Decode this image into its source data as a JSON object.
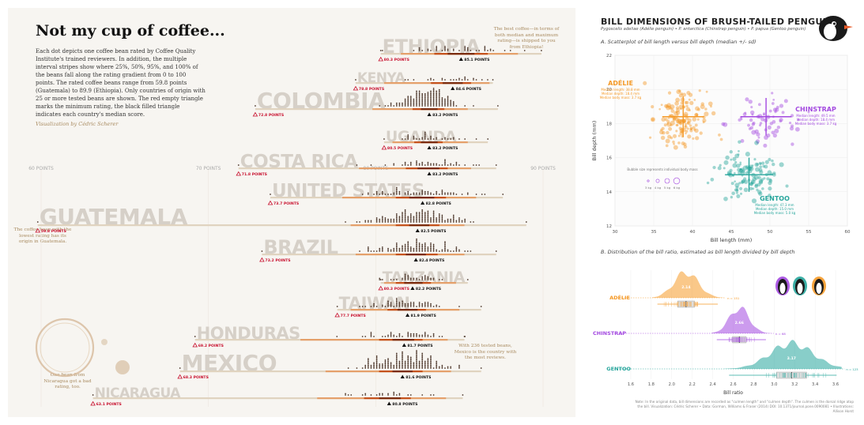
{
  "left": {
    "title": "Not my cup of coffee...",
    "intro": "Each dot depicts one coffee bean rated by Coffee Quality Institute's trained reviewers. In addition, the multiple interval stripes show where 25%, 50%, 95%, and 100% of the beans fall along the rating gradient from 0 to 100 points. The rated coffee beans range from 59.8 points (Guatemala) to 89.9 (Ethiopia). Only countries of origin with 25 or more tested beans are shown. The red empty triangle marks the minimum rating, the black filled triangle indicates each country's median score.",
    "credit": "Visualization by Cédric Scherer",
    "notes": {
      "ethiopia": "The best coffee—in terms of both median and maximum rating—is shipped to you from Ethiopia!",
      "guatemala": "The coffee bean with the lowest rating has its origin in Guatemala.",
      "mexico": "With 236 tested beans, Mexico is the country with the most reviews.",
      "nicaragua": "One bean from Nicaragua got a bad rating, too."
    },
    "colors": {
      "bg": "#f7f5f1",
      "q100": "#e0d3bf",
      "q95": "#e5a06a",
      "q50": "#c5521c",
      "q25": "#7a2b0d",
      "min": "#c8102e",
      "ghost": "#d6d0c8",
      "dot": "#4a3428"
    }
  },
  "right": {
    "title": "BILL DIMENSIONS OF BRUSH-TAILED PENGUINS",
    "subtitle": "Pygoscelis adeliae (Adélie penguin) • P. antarctica (Chinstrap penguin) • P. papua (Gentoo penguin)",
    "secA": "A. Scatterplot of bill length versus bill depth (median +/- sd)",
    "secB": "B. Distribution of the bill ratio, estimated as bill length divided by bill depth",
    "footer": "Note: In the original data, bill dimensions are recorded as \"culmen length\" and \"culmen depth\". The culmen is the dorsal ridge atop the bill. Visualization: Cédric Scherer • Data: Gorman, Williams & Fraser (2014) DOI: 10.1371/journal.pone.0090081 • Illustrations: Allison Horst",
    "bubble_note": "Bubble size represents individual body mass",
    "bubble_sizes": [
      "3 kg",
      "4 kg",
      "5 kg",
      "6 kg"
    ],
    "adelie_info": "Median length: 38.8 mm\nMedian depth: 18.4 mm\nMedian body mass: 3.7 kg",
    "chinstrap_info": "Median length: 49.5 mm\nMedian depth: 18.4 mm\nMedian body mass: 3.7 kg",
    "gentoo_info": "Median length: 47.3 mm\nMedian depth: 15.0 mm\nMedian body mass: 5.0 kg",
    "colors": {
      "adelie": "#f59a28",
      "chinstrap": "#a349e0",
      "gentoo": "#27a69c"
    }
  },
  "chart_data": [
    {
      "type": "scatter",
      "title": "Not my cup of coffee...",
      "xlabel": "",
      "xlim": [
        59,
        91
      ],
      "x_ticks": [
        "60 POINTS",
        "70 POINTS",
        "80 POINTS",
        "90 POINTS"
      ],
      "tick_values": [
        60,
        70,
        80,
        90
      ],
      "series": [
        {
          "name": "ETHIOPIA",
          "min": 80.3,
          "min_label": "80.3 POINTS",
          "median": 85.1,
          "median_label": "85.1 POINTS",
          "max": 89.9,
          "q25": [
            84.3,
            85.9
          ],
          "q50": [
            83.5,
            86.7
          ],
          "q95": [
            81.5,
            88.5
          ],
          "n": 44
        },
        {
          "name": "KENYA",
          "min": 78.8,
          "min_label": "78.8 POINTS",
          "median": 84.6,
          "median_label": "84.6 POINTS",
          "max": 87.0,
          "q25": [
            84.0,
            85.2
          ],
          "q50": [
            83.3,
            85.7
          ],
          "q95": [
            80.5,
            86.8
          ],
          "n": 25
        },
        {
          "name": "COLOMBIA",
          "min": 72.8,
          "min_label": "72.8 POINTS",
          "median": 83.2,
          "median_label": "83.2 POINTS",
          "max": 87.3,
          "q25": [
            82.7,
            83.7
          ],
          "q50": [
            82.2,
            84.1
          ],
          "q95": [
            79.8,
            85.5
          ],
          "n": 183
        },
        {
          "name": "UGANDA",
          "min": 80.5,
          "min_label": "80.5 POINTS",
          "median": 83.2,
          "median_label": "83.2 POINTS",
          "max": 86.7,
          "q25": [
            82.7,
            83.7
          ],
          "q50": [
            82.3,
            84.0
          ],
          "q95": [
            81.0,
            85.5
          ],
          "n": 36
        },
        {
          "name": "COSTA RICA",
          "min": 71.8,
          "min_label": "71.8 POINTS",
          "median": 83.2,
          "median_label": "83.2 POINTS",
          "max": 87.2,
          "q25": [
            82.5,
            83.8
          ],
          "q50": [
            81.8,
            84.3
          ],
          "q95": [
            79.0,
            85.7
          ],
          "n": 51
        },
        {
          "name": "UNITED STATES",
          "min": 73.7,
          "min_label": "73.7 POINTS",
          "median": 82.8,
          "median_label": "82.8 POINTS",
          "max": 87.6,
          "q25": [
            82.0,
            83.5
          ],
          "q50": [
            81.2,
            84.2
          ],
          "q95": [
            78.0,
            86.0
          ],
          "n": 73
        },
        {
          "name": "GUATEMALA",
          "min": 59.8,
          "min_label": "59.8 POINTS",
          "median": 82.5,
          "median_label": "82.5 POINTS",
          "max": 89.0,
          "q25": [
            82.0,
            83.2
          ],
          "q50": [
            81.2,
            83.8
          ],
          "q95": [
            78.5,
            85.3
          ],
          "n": 181
        },
        {
          "name": "BRAZIL",
          "min": 73.2,
          "min_label": "73.2 POINTS",
          "median": 82.4,
          "median_label": "82.4 POINTS",
          "max": 87.2,
          "q25": [
            81.8,
            83.0
          ],
          "q50": [
            81.2,
            83.7
          ],
          "q95": [
            78.8,
            85.3
          ],
          "n": 132
        },
        {
          "name": "TANZANIA",
          "min": 80.3,
          "min_label": "80.3 POINTS",
          "median": 82.2,
          "median_label": "82.2 POINTS",
          "max": 85.5,
          "q25": [
            81.7,
            82.8
          ],
          "q50": [
            81.2,
            83.3
          ],
          "q95": [
            80.5,
            84.8
          ],
          "n": 40
        },
        {
          "name": "TAIWAN",
          "min": 77.7,
          "min_label": "77.7 POINTS",
          "median": 81.9,
          "median_label": "81.9 POINTS",
          "max": 86.3,
          "q25": [
            81.3,
            82.5
          ],
          "q50": [
            80.7,
            83.0
          ],
          "q95": [
            78.5,
            85.0
          ],
          "n": 75
        },
        {
          "name": "HONDURAS",
          "min": 69.2,
          "min_label": "69.2 POINTS",
          "median": 81.7,
          "median_label": "81.7 POINTS",
          "max": 85.3,
          "q25": [
            81.0,
            82.3
          ],
          "q50": [
            80.2,
            82.8
          ],
          "q95": [
            75.5,
            84.3
          ],
          "n": 53
        },
        {
          "name": "MEXICO",
          "min": 68.3,
          "min_label": "68.3 POINTS",
          "median": 81.6,
          "median_label": "81.6 POINTS",
          "max": 86.3,
          "q25": [
            81.0,
            82.2
          ],
          "q50": [
            80.2,
            82.8
          ],
          "q95": [
            77.0,
            84.5
          ],
          "n": 236
        },
        {
          "name": "NICARAGUA",
          "min": 63.1,
          "min_label": "63.1 POINTS",
          "median": 80.8,
          "median_label": "80.8 POINTS",
          "max": 85.2,
          "q25": [
            80.2,
            81.5
          ],
          "q50": [
            79.3,
            82.1
          ],
          "q95": [
            76.5,
            84.2
          ],
          "n": 26
        }
      ]
    },
    {
      "type": "scatter",
      "title": "A. Scatterplot of bill length versus bill depth (median +/- sd)",
      "xlabel": "Bill length (mm)",
      "ylabel": "Bill depth (mm)",
      "xlim": [
        30,
        60
      ],
      "ylim": [
        12,
        22
      ],
      "x_ticks": [
        30,
        35,
        40,
        45,
        50,
        55,
        60
      ],
      "y_ticks": [
        12,
        14,
        16,
        18,
        20,
        22
      ],
      "series": [
        {
          "name": "ADÉLIE",
          "median_x": 38.8,
          "median_y": 18.4,
          "sd_x": 2.7,
          "sd_y": 1.2,
          "n": 151
        },
        {
          "name": "CHINSTRAP",
          "median_x": 49.5,
          "median_y": 18.4,
          "sd_x": 3.3,
          "sd_y": 1.1,
          "n": 68
        },
        {
          "name": "GENTOO",
          "median_x": 47.3,
          "median_y": 15.0,
          "sd_x": 3.1,
          "sd_y": 1.0,
          "n": 123
        }
      ]
    },
    {
      "type": "area",
      "title": "B. Distribution of the bill ratio, estimated as bill length divided by bill depth",
      "xlabel": "Bill ratio",
      "xlim": [
        1.5,
        3.7
      ],
      "x_ticks": [
        1.6,
        1.8,
        2.0,
        2.2,
        2.4,
        2.6,
        2.8,
        3.0,
        3.2,
        3.4,
        3.6
      ],
      "series": [
        {
          "name": "ADÉLIE",
          "median": 2.14,
          "median_label": "2.14",
          "n_label": "n = 151",
          "min": 1.86,
          "max": 2.45
        },
        {
          "name": "CHINSTRAP",
          "median": 2.66,
          "median_label": "2.66",
          "n_label": "n = 68",
          "min": 2.44,
          "max": 2.92
        },
        {
          "name": "GENTOO",
          "median": 3.17,
          "median_label": "3.17",
          "n_label": "n = 123",
          "min": 2.56,
          "max": 3.61
        }
      ]
    }
  ]
}
